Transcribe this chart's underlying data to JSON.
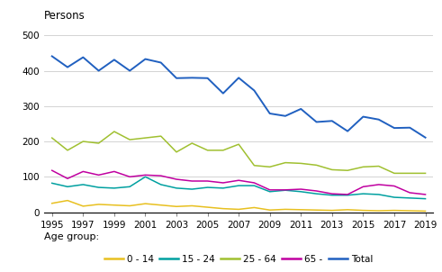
{
  "years": [
    1995,
    1996,
    1997,
    1998,
    1999,
    2000,
    2001,
    2002,
    2003,
    2004,
    2005,
    2006,
    2007,
    2008,
    2009,
    2010,
    2011,
    2012,
    2013,
    2014,
    2015,
    2016,
    2017,
    2018,
    2019
  ],
  "age_0_14": [
    25,
    33,
    17,
    22,
    20,
    18,
    24,
    20,
    16,
    18,
    14,
    10,
    8,
    13,
    6,
    8,
    7,
    6,
    5,
    7,
    5,
    4,
    5,
    4,
    3
  ],
  "age_15_24": [
    82,
    72,
    78,
    70,
    68,
    72,
    100,
    78,
    68,
    65,
    70,
    68,
    75,
    75,
    58,
    62,
    58,
    52,
    48,
    48,
    52,
    50,
    42,
    40,
    38
  ],
  "age_25_64": [
    210,
    175,
    200,
    195,
    228,
    205,
    210,
    215,
    170,
    195,
    175,
    175,
    192,
    132,
    128,
    140,
    138,
    133,
    120,
    118,
    128,
    130,
    110,
    110,
    110
  ],
  "age_65_": [
    118,
    95,
    115,
    105,
    115,
    100,
    105,
    103,
    93,
    88,
    88,
    83,
    90,
    83,
    63,
    63,
    65,
    60,
    52,
    50,
    72,
    78,
    74,
    55,
    50
  ],
  "total": [
    441,
    410,
    438,
    400,
    431,
    400,
    433,
    423,
    379,
    380,
    379,
    336,
    380,
    344,
    279,
    272,
    292,
    255,
    258,
    229,
    270,
    262,
    238,
    239,
    211
  ],
  "colors": {
    "0_14": "#e8c020",
    "15_24": "#00a0a0",
    "25_64": "#a0c030",
    "65_": "#c000a0",
    "total": "#2060c0"
  },
  "ylabel": "Persons",
  "xlabel": "Age group:",
  "ylim": [
    0,
    500
  ],
  "yticks": [
    0,
    100,
    200,
    300,
    400,
    500
  ],
  "legend_labels": [
    "0 - 14",
    "15 - 24",
    "25 - 64",
    "65 -",
    "Total"
  ],
  "xtick_years": [
    1995,
    1997,
    1999,
    2001,
    2003,
    2005,
    2007,
    2009,
    2011,
    2013,
    2015,
    2017,
    2019
  ]
}
